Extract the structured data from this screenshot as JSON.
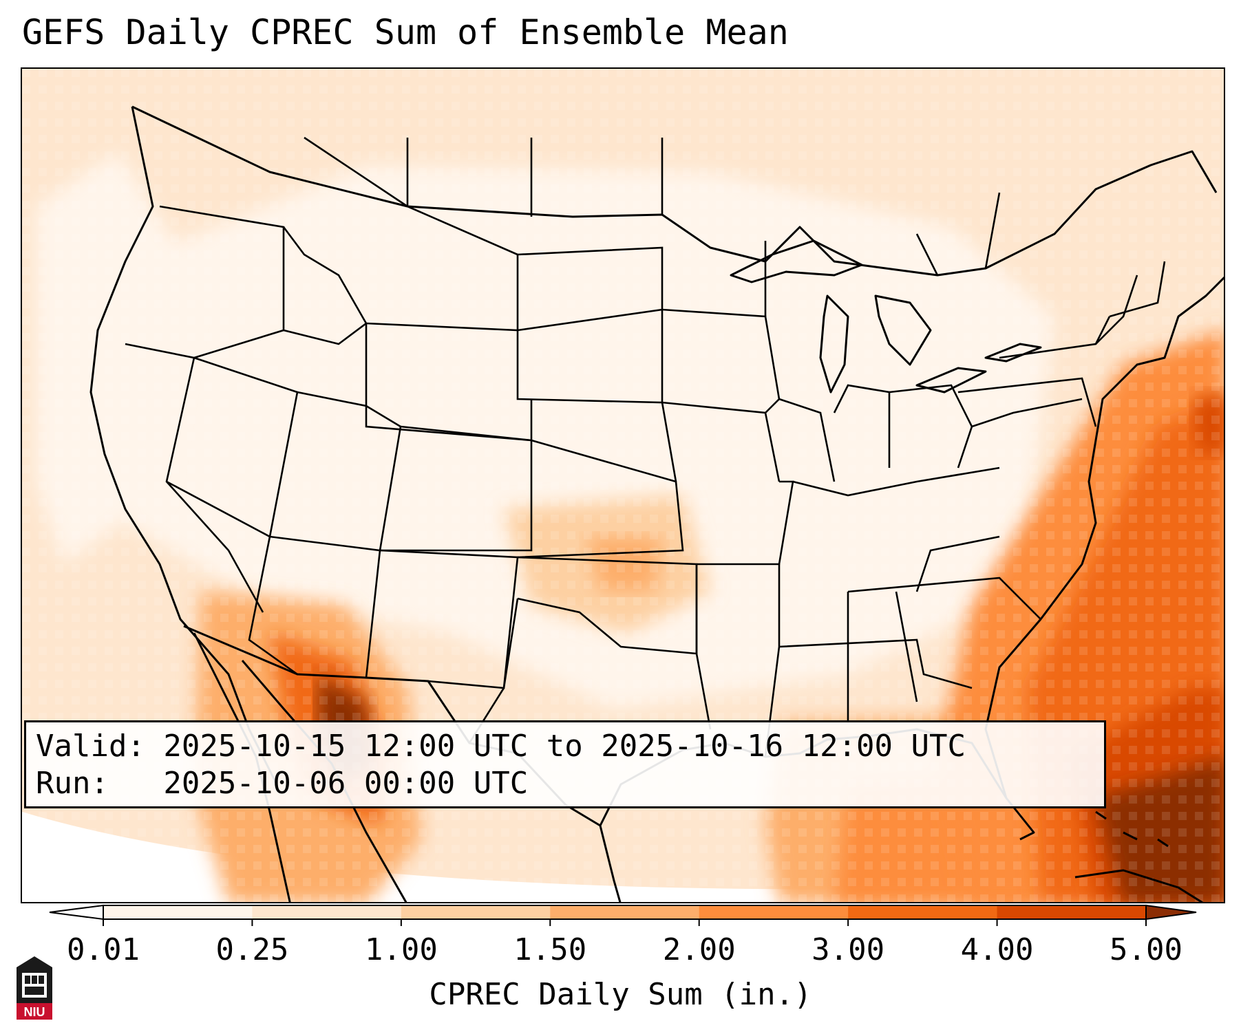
{
  "title": "GEFS Daily CPREC Sum of Ensemble Mean",
  "info": {
    "valid": "Valid: 2025-10-15 12:00 UTC to 2025-10-16 12:00 UTC",
    "run": "Run:   2025-10-06 00:00 UTC"
  },
  "colorbar": {
    "label": "CPREC Daily Sum (in.)",
    "ticks": [
      "0.01",
      "0.25",
      "1.00",
      "1.50",
      "2.00",
      "3.00",
      "4.00",
      "5.00"
    ],
    "colors": [
      "#fff5eb",
      "#fee6ce",
      "#fdd0a2",
      "#fdae6b",
      "#fd8d3c",
      "#f16913",
      "#d94801",
      "#8c2d04"
    ]
  },
  "logo": {
    "text": "NIU",
    "colors": {
      "red": "#c8102e",
      "black": "#1a1a1a"
    }
  },
  "map": {
    "basemap": "precipitation field over the contiguous United States with state borders, coastlines and the Great Lakes",
    "line_color": "#000000"
  }
}
